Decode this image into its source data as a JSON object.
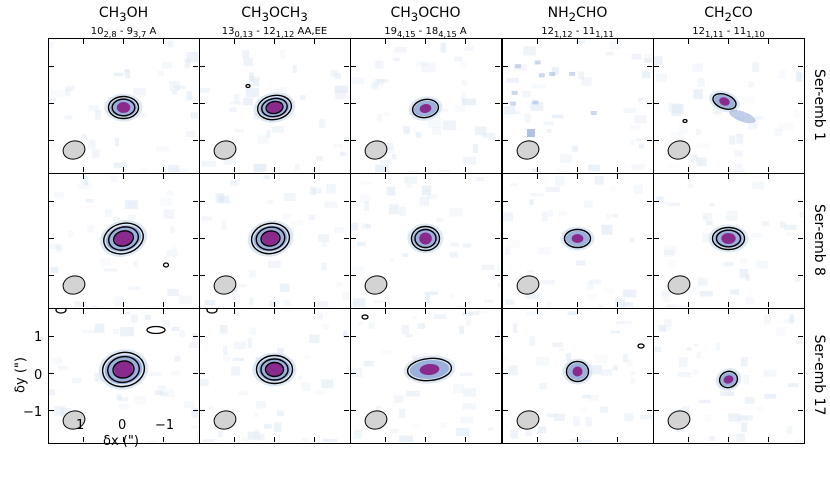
{
  "figure": {
    "columns": [
      {
        "title": "CH3OH",
        "title_html": "CH<sub>3</sub>OH",
        "transition_html": "10<sub>2,8</sub> - 9<sub>3,7</sub> A"
      },
      {
        "title": "CH3OCH3",
        "title_html": "CH<sub>3</sub>OCH<sub>3</sub>",
        "transition_html": "13<sub>0,13</sub> - 12<sub>1,12</sub> AA,EE"
      },
      {
        "title": "CH3OCHO",
        "title_html": "CH<sub>3</sub>OCHO",
        "transition_html": "19<sub>4,15</sub> - 18<sub>4,15</sub> A"
      },
      {
        "title": "NH2CHO",
        "title_html": "NH<sub>2</sub>CHO",
        "transition_html": "12<sub>1,12</sub> - 11<sub>1,11</sub>"
      },
      {
        "title": "CH2CO",
        "title_html": "CH<sub>2</sub>CO",
        "transition_html": "12<sub>1,11</sub> - 11<sub>1,10</sub>"
      }
    ],
    "rows": [
      {
        "label": "Ser-emb 1"
      },
      {
        "label": "Ser-emb 8"
      },
      {
        "label": "Ser-emb 17"
      }
    ],
    "x_axis": {
      "label": "δx (\")",
      "ticks": [
        "1",
        "0",
        "−1"
      ]
    },
    "y_axis": {
      "label": "δy (\")",
      "ticks": [
        "1",
        "0",
        "−1"
      ]
    },
    "colors": {
      "low": "#dce7f3",
      "mid": "#8fa6d6",
      "high": "#8a2a8c",
      "beam": "#d3d3d3",
      "contour": "#000000"
    }
  }
}
